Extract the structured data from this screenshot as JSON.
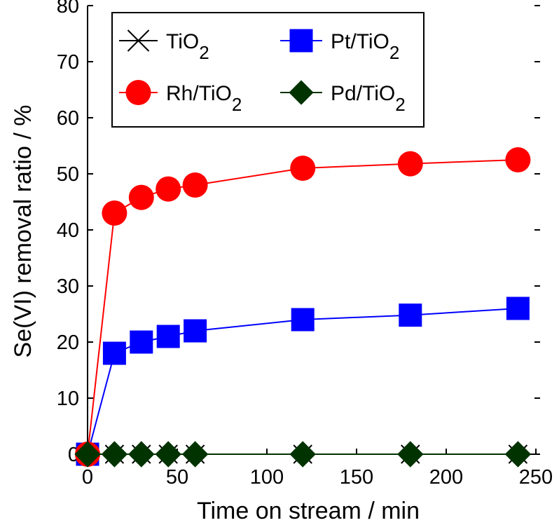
{
  "chart_data": {
    "type": "line",
    "xlabel": "Time on stream / min",
    "ylabel": "Se(VI) removal ratio / %",
    "xlim": [
      0,
      250
    ],
    "ylim": [
      0,
      80
    ],
    "xticks": [
      0,
      50,
      100,
      150,
      200,
      250
    ],
    "yticks": [
      0,
      10,
      20,
      30,
      40,
      50,
      60,
      70,
      80
    ],
    "x": [
      0,
      15,
      30,
      45,
      60,
      120,
      180,
      240
    ],
    "legend_position": "top",
    "series": [
      {
        "name_main": "TiO",
        "name_sub": "2",
        "color": "#000000",
        "marker": "x",
        "values": [
          0,
          0,
          0,
          0,
          0,
          0,
          0,
          0
        ]
      },
      {
        "name_main": "Pt/TiO",
        "name_sub": "2",
        "color": "#0000ff",
        "marker": "square",
        "values": [
          0,
          18,
          20,
          21,
          22,
          24,
          24.8,
          26
        ]
      },
      {
        "name_main": "Rh/TiO",
        "name_sub": "2",
        "color": "#ff0000",
        "marker": "circle",
        "values": [
          0,
          43,
          45.8,
          47.3,
          48,
          51,
          51.8,
          52.5
        ]
      },
      {
        "name_main": "Pd/TiO",
        "name_sub": "2",
        "color": "#003300",
        "marker": "diamond",
        "values": [
          0,
          0,
          0,
          0,
          0,
          0,
          0,
          0
        ]
      }
    ]
  }
}
